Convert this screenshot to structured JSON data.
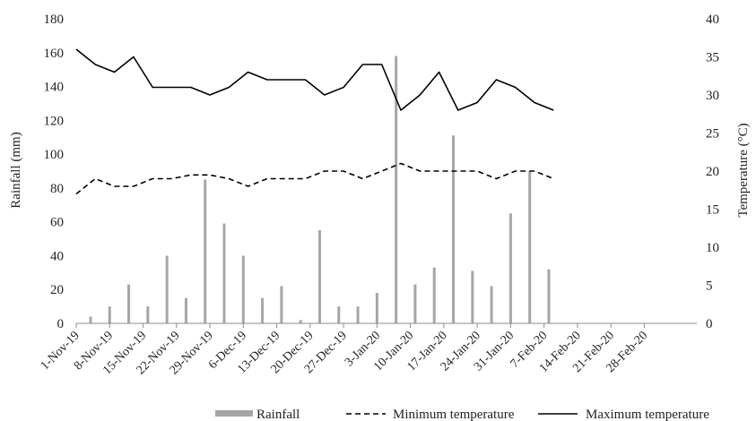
{
  "chart_data": {
    "type": "bar+line",
    "dual_axis": true,
    "x_tick_labels": [
      "1-Nov-19",
      "8-Nov-19",
      "15-Nov-19",
      "22-Nov-19",
      "29-Nov-19",
      "6-Dec-19",
      "13-Dec-19",
      "20-Dec-19",
      "27-Dec-19",
      "3-Jan-20",
      "10-Jan-20",
      "17-Jan-20",
      "24-Jan-20",
      "31-Jan-20",
      "7-Feb-20",
      "14-Feb-20",
      "21-Feb-20",
      "28-Feb-20"
    ],
    "ylabel_left": "Rainfall (mm)",
    "ylabel_right": "Temperature (°C)",
    "ylim_left": [
      0,
      180
    ],
    "ylim_right": [
      0,
      40
    ],
    "yticks_left": [
      0,
      20,
      40,
      60,
      80,
      100,
      120,
      140,
      160,
      180
    ],
    "yticks_right": [
      0,
      5,
      10,
      15,
      20,
      25,
      30,
      35,
      40
    ],
    "grid": false,
    "legend_position": "bottom",
    "rainfall": {
      "name": "Rainfall",
      "color": "#a6a6a6",
      "points": [
        {
          "x": "4-Nov-19",
          "y": 4
        },
        {
          "x": "8-Nov-19",
          "y": 10
        },
        {
          "x": "12-Nov-19",
          "y": 23
        },
        {
          "x": "16-Nov-19",
          "y": 10
        },
        {
          "x": "20-Nov-19",
          "y": 40
        },
        {
          "x": "24-Nov-19",
          "y": 15
        },
        {
          "x": "28-Nov-19",
          "y": 85
        },
        {
          "x": "2-Dec-19",
          "y": 59
        },
        {
          "x": "6-Dec-19",
          "y": 40
        },
        {
          "x": "10-Dec-19",
          "y": 15
        },
        {
          "x": "14-Dec-19",
          "y": 22
        },
        {
          "x": "18-Dec-19",
          "y": 2
        },
        {
          "x": "22-Dec-19",
          "y": 55
        },
        {
          "x": "26-Dec-19",
          "y": 10
        },
        {
          "x": "30-Dec-19",
          "y": 10
        },
        {
          "x": "3-Jan-20",
          "y": 18
        },
        {
          "x": "7-Jan-20",
          "y": 158
        },
        {
          "x": "11-Jan-20",
          "y": 23
        },
        {
          "x": "15-Jan-20",
          "y": 33
        },
        {
          "x": "19-Jan-20",
          "y": 111
        },
        {
          "x": "23-Jan-20",
          "y": 31
        },
        {
          "x": "27-Jan-20",
          "y": 22
        },
        {
          "x": "31-Jan-20",
          "y": 65
        },
        {
          "x": "4-Feb-20",
          "y": 90
        },
        {
          "x": "8-Feb-20",
          "y": 32
        }
      ]
    },
    "series": [
      {
        "name": "Minimum temperature",
        "style": "dashed",
        "color": "#000000",
        "points": [
          {
            "x": "1-Nov-19",
            "y": 17
          },
          {
            "x": "5-Nov-19",
            "y": 19
          },
          {
            "x": "9-Nov-19",
            "y": 18
          },
          {
            "x": "13-Nov-19",
            "y": 18
          },
          {
            "x": "17-Nov-19",
            "y": 19
          },
          {
            "x": "21-Nov-19",
            "y": 19
          },
          {
            "x": "25-Nov-19",
            "y": 19.5
          },
          {
            "x": "29-Nov-19",
            "y": 19.5
          },
          {
            "x": "3-Dec-19",
            "y": 19
          },
          {
            "x": "7-Dec-19",
            "y": 18
          },
          {
            "x": "11-Dec-19",
            "y": 19
          },
          {
            "x": "15-Dec-19",
            "y": 19
          },
          {
            "x": "19-Dec-19",
            "y": 19
          },
          {
            "x": "23-Dec-19",
            "y": 20
          },
          {
            "x": "27-Dec-19",
            "y": 20
          },
          {
            "x": "31-Dec-19",
            "y": 19
          },
          {
            "x": "4-Jan-20",
            "y": 20
          },
          {
            "x": "8-Jan-20",
            "y": 21
          },
          {
            "x": "12-Jan-20",
            "y": 20
          },
          {
            "x": "16-Jan-20",
            "y": 20
          },
          {
            "x": "20-Jan-20",
            "y": 20
          },
          {
            "x": "24-Jan-20",
            "y": 20
          },
          {
            "x": "28-Jan-20",
            "y": 19
          },
          {
            "x": "1-Feb-20",
            "y": 20
          },
          {
            "x": "5-Feb-20",
            "y": 20
          },
          {
            "x": "9-Feb-20",
            "y": 19
          }
        ]
      },
      {
        "name": "Maximum temperature",
        "style": "solid",
        "color": "#000000",
        "points": [
          {
            "x": "1-Nov-19",
            "y": 36
          },
          {
            "x": "5-Nov-19",
            "y": 34
          },
          {
            "x": "9-Nov-19",
            "y": 33
          },
          {
            "x": "13-Nov-19",
            "y": 35
          },
          {
            "x": "17-Nov-19",
            "y": 31
          },
          {
            "x": "21-Nov-19",
            "y": 31
          },
          {
            "x": "25-Nov-19",
            "y": 31
          },
          {
            "x": "29-Nov-19",
            "y": 30
          },
          {
            "x": "3-Dec-19",
            "y": 31
          },
          {
            "x": "7-Dec-19",
            "y": 33
          },
          {
            "x": "11-Dec-19",
            "y": 32
          },
          {
            "x": "15-Dec-19",
            "y": 32
          },
          {
            "x": "19-Dec-19",
            "y": 32
          },
          {
            "x": "23-Dec-19",
            "y": 30
          },
          {
            "x": "27-Dec-19",
            "y": 31
          },
          {
            "x": "31-Dec-19",
            "y": 34
          },
          {
            "x": "4-Jan-20",
            "y": 34
          },
          {
            "x": "8-Jan-20",
            "y": 28
          },
          {
            "x": "12-Jan-20",
            "y": 30
          },
          {
            "x": "16-Jan-20",
            "y": 33
          },
          {
            "x": "20-Jan-20",
            "y": 28
          },
          {
            "x": "24-Jan-20",
            "y": 29
          },
          {
            "x": "28-Jan-20",
            "y": 32
          },
          {
            "x": "1-Feb-20",
            "y": 31
          },
          {
            "x": "5-Feb-20",
            "y": 29
          },
          {
            "x": "9-Feb-20",
            "y": 28
          }
        ]
      }
    ],
    "legend": [
      "Rainfall",
      "Minimum temperature",
      "Maximum temperature"
    ]
  }
}
